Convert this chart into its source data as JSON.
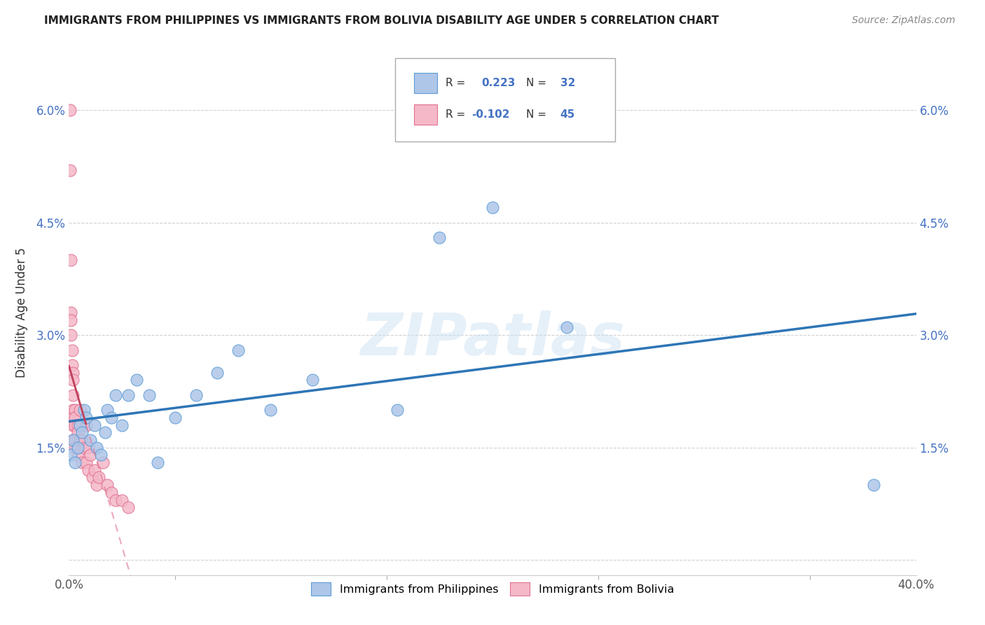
{
  "title": "IMMIGRANTS FROM PHILIPPINES VS IMMIGRANTS FROM BOLIVIA DISABILITY AGE UNDER 5 CORRELATION CHART",
  "source": "Source: ZipAtlas.com",
  "ylabel": "Disability Age Under 5",
  "xlim": [
    0.0,
    0.4
  ],
  "ylim": [
    -0.002,
    0.068
  ],
  "xtick_vals": [
    0.0,
    0.1,
    0.2,
    0.3,
    0.4
  ],
  "xticklabels": [
    "0.0%",
    "",
    "",
    "",
    "40.0%"
  ],
  "ytick_vals": [
    0.0,
    0.015,
    0.03,
    0.045,
    0.06
  ],
  "yticklabels": [
    "",
    "1.5%",
    "3.0%",
    "4.5%",
    "6.0%"
  ],
  "philippines_color": "#aec6e8",
  "philippines_edge_color": "#5b9bd5",
  "philippines_line_color": "#2e75b6",
  "bolivia_color": "#f4b8c8",
  "bolivia_edge_color": "#e07090",
  "bolivia_line_color": "#c0405a",
  "watermark": "ZIPatlas",
  "background_color": "#ffffff",
  "grid_color": "#cccccc",
  "legend_label_phil": "Immigrants from Philippines",
  "legend_label_boliv": "Immigrants from Bolivia",
  "phil_R": "0.223",
  "phil_N": "32",
  "boliv_R": "-0.102",
  "boliv_N": "45",
  "philippines_x": [
    0.001,
    0.002,
    0.003,
    0.004,
    0.005,
    0.006,
    0.007,
    0.008,
    0.01,
    0.012,
    0.013,
    0.015,
    0.017,
    0.018,
    0.02,
    0.022,
    0.025,
    0.028,
    0.032,
    0.038,
    0.042,
    0.05,
    0.06,
    0.07,
    0.08,
    0.095,
    0.115,
    0.155,
    0.175,
    0.2,
    0.235,
    0.38
  ],
  "philippines_y": [
    0.014,
    0.016,
    0.013,
    0.015,
    0.018,
    0.017,
    0.02,
    0.019,
    0.016,
    0.018,
    0.015,
    0.014,
    0.017,
    0.02,
    0.019,
    0.022,
    0.018,
    0.022,
    0.024,
    0.022,
    0.013,
    0.019,
    0.022,
    0.025,
    0.028,
    0.02,
    0.024,
    0.02,
    0.043,
    0.047,
    0.031,
    0.01
  ],
  "bolivia_x": [
    0.0005,
    0.0005,
    0.001,
    0.001,
    0.001,
    0.001,
    0.0015,
    0.0015,
    0.002,
    0.002,
    0.002,
    0.002,
    0.002,
    0.002,
    0.002,
    0.003,
    0.003,
    0.003,
    0.003,
    0.003,
    0.004,
    0.004,
    0.004,
    0.004,
    0.005,
    0.005,
    0.005,
    0.006,
    0.006,
    0.007,
    0.008,
    0.008,
    0.009,
    0.009,
    0.01,
    0.011,
    0.012,
    0.013,
    0.014,
    0.016,
    0.018,
    0.02,
    0.022,
    0.025,
    0.028
  ],
  "bolivia_y": [
    0.06,
    0.052,
    0.04,
    0.033,
    0.032,
    0.03,
    0.028,
    0.026,
    0.025,
    0.024,
    0.022,
    0.02,
    0.019,
    0.018,
    0.016,
    0.02,
    0.019,
    0.018,
    0.016,
    0.015,
    0.018,
    0.017,
    0.015,
    0.014,
    0.02,
    0.018,
    0.016,
    0.016,
    0.013,
    0.015,
    0.018,
    0.013,
    0.015,
    0.012,
    0.014,
    0.011,
    0.012,
    0.01,
    0.011,
    0.013,
    0.01,
    0.009,
    0.008,
    0.008,
    0.007
  ]
}
